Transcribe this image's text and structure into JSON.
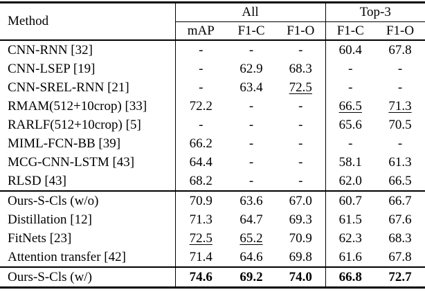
{
  "table": {
    "method_header": "Method",
    "groups": [
      {
        "label": "All",
        "colspan": 3
      },
      {
        "label": "Top-3",
        "colspan": 2
      }
    ],
    "sub_headers": [
      "mAP",
      "F1-C",
      "F1-O",
      "F1-C",
      "F1-O"
    ],
    "sections": [
      {
        "name": "prior-methods",
        "rows": [
          {
            "method": "CNN-RNN [32]",
            "cells": [
              {
                "v": "-"
              },
              {
                "v": "-"
              },
              {
                "v": "-"
              },
              {
                "v": "60.4"
              },
              {
                "v": "67.8"
              }
            ]
          },
          {
            "method": "CNN-LSEP [19]",
            "cells": [
              {
                "v": "-"
              },
              {
                "v": "62.9"
              },
              {
                "v": "68.3"
              },
              {
                "v": "-"
              },
              {
                "v": "-"
              }
            ]
          },
          {
            "method": "CNN-SREL-RNN [21]",
            "cells": [
              {
                "v": "-"
              },
              {
                "v": "63.4"
              },
              {
                "v": "72.5",
                "underline": true
              },
              {
                "v": "-"
              },
              {
                "v": "-"
              }
            ]
          },
          {
            "method": "RMAM(512+10crop) [33]",
            "cells": [
              {
                "v": "72.2"
              },
              {
                "v": "-"
              },
              {
                "v": "-"
              },
              {
                "v": "66.5",
                "underline": true
              },
              {
                "v": "71.3",
                "underline": true
              }
            ]
          },
          {
            "method": "RARLF(512+10crop) [5]",
            "cells": [
              {
                "v": "-"
              },
              {
                "v": "-"
              },
              {
                "v": "-"
              },
              {
                "v": "65.6"
              },
              {
                "v": "70.5"
              }
            ]
          },
          {
            "method": "MIML-FCN-BB [39]",
            "cells": [
              {
                "v": "66.2"
              },
              {
                "v": "-"
              },
              {
                "v": "-"
              },
              {
                "v": "-"
              },
              {
                "v": "-"
              }
            ]
          },
          {
            "method": "MCG-CNN-LSTM [43]",
            "cells": [
              {
                "v": "64.4"
              },
              {
                "v": "-"
              },
              {
                "v": "-"
              },
              {
                "v": "58.1"
              },
              {
                "v": "61.3"
              }
            ]
          },
          {
            "method": "RLSD [43]",
            "cells": [
              {
                "v": "68.2"
              },
              {
                "v": "-"
              },
              {
                "v": "-"
              },
              {
                "v": "62.0"
              },
              {
                "v": "66.5"
              }
            ]
          }
        ]
      },
      {
        "name": "distillation-variants",
        "rows": [
          {
            "method": "Ours-S-Cls (w/o)",
            "cells": [
              {
                "v": "70.9"
              },
              {
                "v": "63.6"
              },
              {
                "v": "67.0"
              },
              {
                "v": "60.7"
              },
              {
                "v": "66.7"
              }
            ]
          },
          {
            "method": "Distillation [12]",
            "cells": [
              {
                "v": "71.3"
              },
              {
                "v": "64.7"
              },
              {
                "v": "69.3"
              },
              {
                "v": "61.5"
              },
              {
                "v": "67.6"
              }
            ]
          },
          {
            "method": "FitNets [23]",
            "cells": [
              {
                "v": "72.5",
                "underline": true
              },
              {
                "v": "65.2",
                "underline": true
              },
              {
                "v": "70.9"
              },
              {
                "v": "62.3"
              },
              {
                "v": "68.3"
              }
            ]
          },
          {
            "method": "Attention transfer [42]",
            "cells": [
              {
                "v": "71.4"
              },
              {
                "v": "64.6"
              },
              {
                "v": "69.8"
              },
              {
                "v": "61.6"
              },
              {
                "v": "67.8"
              }
            ]
          }
        ]
      },
      {
        "name": "ours-final",
        "rows": [
          {
            "method": "Ours-S-Cls (w/)",
            "cells": [
              {
                "v": "74.6",
                "bold": true
              },
              {
                "v": "69.2",
                "bold": true
              },
              {
                "v": "74.0",
                "bold": true
              },
              {
                "v": "66.8",
                "bold": true
              },
              {
                "v": "72.7",
                "bold": true
              }
            ]
          }
        ]
      }
    ],
    "colors": {
      "text": "#000000",
      "background": "#ffffff",
      "rule": "#000000"
    }
  }
}
